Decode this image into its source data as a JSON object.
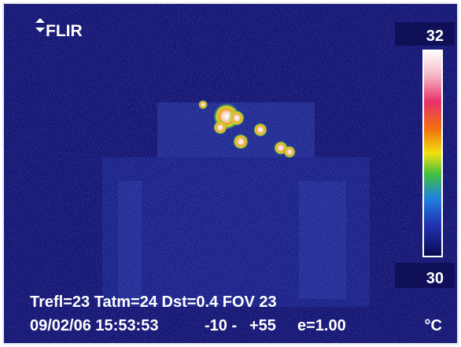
{
  "logo": "FLIR",
  "scale": {
    "max": "32",
    "min": "30",
    "unit": "°C"
  },
  "info": {
    "line1": "Trefl=23 Tatm=24 Dst=0.4 FOV 23",
    "date_time": "09/02/06 15:53:53",
    "range_low": "-10 -",
    "range_high": "+55",
    "emissivity": "e=1.00"
  }
}
